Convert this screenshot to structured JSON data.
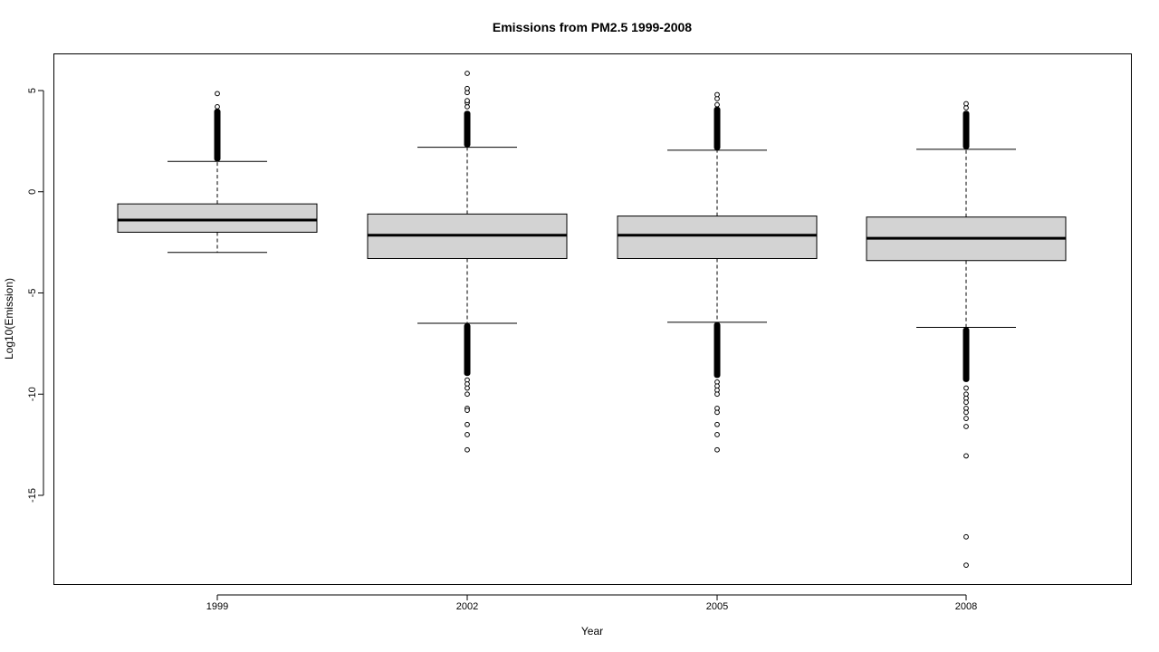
{
  "chart_data": {
    "type": "box",
    "title": "Emissions from PM2.5 1999-2008",
    "xlabel": "Year",
    "ylabel": "Log10(Emission)",
    "categories": [
      "1999",
      "2002",
      "2005",
      "2008"
    ],
    "ylim": [
      -19,
      7
    ],
    "yticks": [
      5,
      0,
      -5,
      -10,
      -15
    ],
    "ytick_labels": [
      "5",
      "0",
      "-5",
      "-10",
      "-15"
    ],
    "box_fill": "#d3d3d3",
    "boxes": [
      {
        "category": "1999",
        "q1": -2.0,
        "median": -1.4,
        "q3": -0.6,
        "whisker_low": -3.0,
        "whisker_high": 1.5,
        "outliers_high_dense": [
          1.5,
          4.1
        ],
        "outliers_high": [
          4.2,
          4.85
        ],
        "outliers_low_dense": null,
        "outliers_low": []
      },
      {
        "category": "2002",
        "q1": -3.3,
        "median": -2.15,
        "q3": -1.1,
        "whisker_low": -6.5,
        "whisker_high": 2.2,
        "outliers_high_dense": [
          2.2,
          4.0
        ],
        "outliers_high": [
          4.2,
          4.4,
          4.5,
          4.9,
          5.1,
          5.85
        ],
        "outliers_low_dense": [
          -6.5,
          -9.1
        ],
        "outliers_low": [
          -9.3,
          -9.5,
          -9.7,
          -10.0,
          -10.7,
          -10.8,
          -11.5,
          -12.0,
          -12.75
        ]
      },
      {
        "category": "2005",
        "q1": -3.3,
        "median": -2.15,
        "q3": -1.2,
        "whisker_low": -6.45,
        "whisker_high": 2.05,
        "outliers_high_dense": [
          2.05,
          4.2
        ],
        "outliers_high": [
          4.3,
          4.6,
          4.8
        ],
        "outliers_low_dense": [
          -6.45,
          -9.2
        ],
        "outliers_low": [
          -9.4,
          -9.6,
          -9.8,
          -10.0,
          -10.7,
          -10.9,
          -11.5,
          -12.0,
          -12.75
        ]
      },
      {
        "category": "2008",
        "q1": -3.4,
        "median": -2.3,
        "q3": -1.25,
        "whisker_low": -6.7,
        "whisker_high": 2.1,
        "outliers_high_dense": [
          2.1,
          4.0
        ],
        "outliers_high": [
          4.15,
          4.35
        ],
        "outliers_low_dense": [
          -6.7,
          -9.4
        ],
        "outliers_low": [
          -9.7,
          -10.0,
          -10.2,
          -10.4,
          -10.7,
          -10.9,
          -11.2,
          -11.6,
          -13.05,
          -17.05,
          -18.45
        ]
      }
    ]
  }
}
